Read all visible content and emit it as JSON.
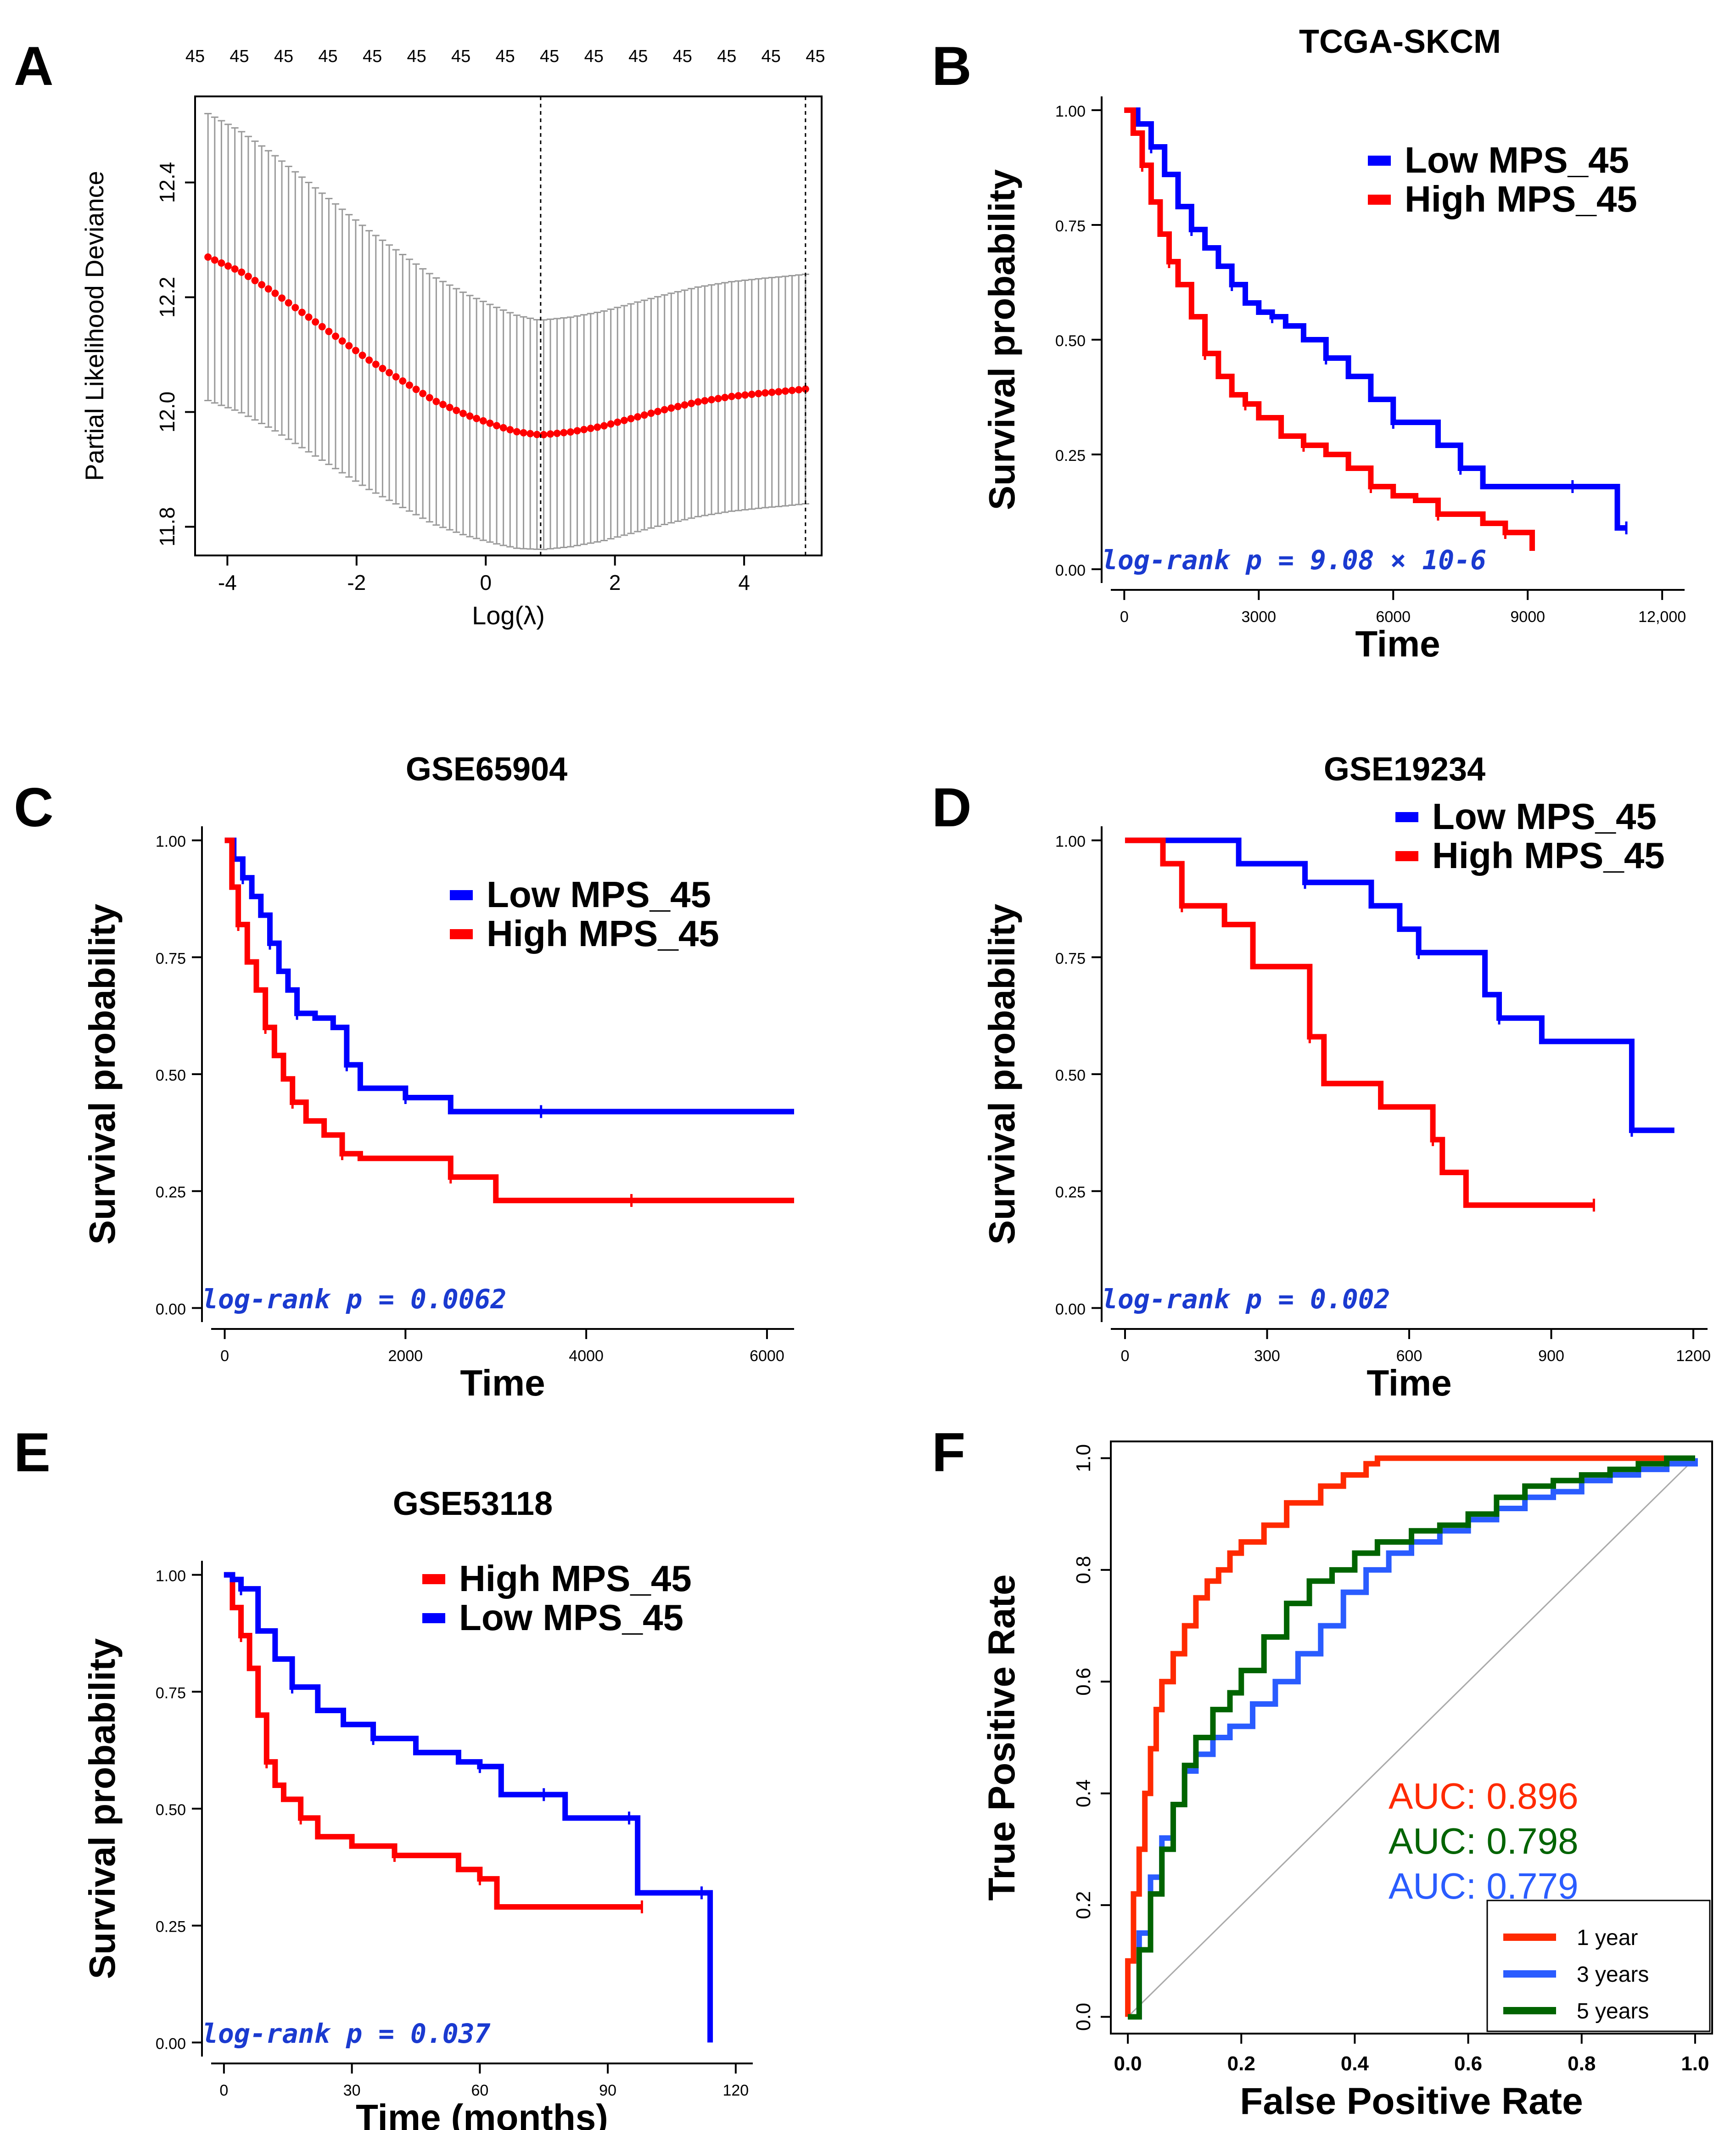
{
  "figure": {
    "chart_data": [
      {
        "panel": "A",
        "type": "line",
        "title": "",
        "xlabel": "Log(λ)",
        "ylabel": "Partial Likelihood Deviance",
        "xlim": [
          -4.5,
          5.2
        ],
        "ylim": [
          11.75,
          12.55
        ],
        "xticks": [
          "-4",
          "-2",
          "0",
          "2",
          "4"
        ],
        "yticks": [
          "11.8",
          "12.0",
          "12.2",
          "12.4"
        ],
        "top_axis_labels": [
          "45",
          "45",
          "45",
          "45",
          "45",
          "45",
          "45",
          "45",
          "45",
          "45",
          "45",
          "45",
          "45",
          "45",
          "45"
        ],
        "vlines": [
          0.85,
          4.95
        ],
        "series": [
          {
            "name": "Partial likelihood deviance",
            "x": [
              -4.3,
              -3.8,
              -3.3,
              -2.8,
              -2.3,
              -1.8,
              -1.3,
              -0.8,
              -0.3,
              0.2,
              0.5,
              0.85,
              1.3,
              1.8,
              2.3,
              2.8,
              3.3,
              3.8,
              4.3,
              4.6,
              4.95
            ],
            "y": [
              12.27,
              12.245,
              12.21,
              12.17,
              12.13,
              12.09,
              12.055,
              12.02,
              11.995,
              11.975,
              11.965,
              11.96,
              11.965,
              11.975,
              11.99,
              12.005,
              12.018,
              12.027,
              12.033,
              12.036,
              12.04
            ]
          }
        ],
        "error_band": {
          "upper_start": 12.52,
          "lower_start": 12.02,
          "upper_min": 12.15,
          "lower_min": 11.75,
          "upper_end": 12.24,
          "lower_end": 11.84
        }
      },
      {
        "panel": "B",
        "type": "line",
        "title": "TCGA-SKCM",
        "xlabel": "Time",
        "ylabel": "Survival probability",
        "xlim": [
          -300,
          12500
        ],
        "ylim": [
          -0.03,
          1.03
        ],
        "xticks": [
          "0",
          "3000",
          "6000",
          "9000",
          "12,000"
        ],
        "yticks": [
          "0.00",
          "0.25",
          "0.50",
          "0.75",
          "1.00"
        ],
        "legend": [
          "Low MPS_45",
          "High MPS_45"
        ],
        "annotation": "log-rank p = 9.08 × 10-6",
        "series": [
          {
            "name": "Low MPS_45",
            "x": [
              0,
              300,
              600,
              900,
              1200,
              1500,
              1800,
              2100,
              2400,
              2700,
              3000,
              3300,
              3600,
              4000,
              4500,
              5000,
              5500,
              6000,
              6500,
              7000,
              7500,
              8000,
              9000,
              10000,
              10500,
              11000,
              11200
            ],
            "y": [
              1.0,
              0.97,
              0.92,
              0.86,
              0.79,
              0.74,
              0.7,
              0.66,
              0.62,
              0.58,
              0.56,
              0.55,
              0.53,
              0.5,
              0.46,
              0.42,
              0.37,
              0.32,
              0.32,
              0.27,
              0.22,
              0.18,
              0.18,
              0.18,
              0.18,
              0.09,
              0.09
            ]
          },
          {
            "name": "High MPS_45",
            "x": [
              0,
              200,
              400,
              600,
              800,
              1000,
              1200,
              1500,
              1800,
              2100,
              2400,
              2700,
              3000,
              3500,
              4000,
              4500,
              5000,
              5500,
              6000,
              6500,
              7000,
              7500,
              8000,
              8500,
              9000,
              9100
            ],
            "y": [
              1.0,
              0.95,
              0.88,
              0.8,
              0.73,
              0.67,
              0.62,
              0.55,
              0.47,
              0.42,
              0.38,
              0.36,
              0.33,
              0.29,
              0.27,
              0.25,
              0.22,
              0.18,
              0.16,
              0.15,
              0.12,
              0.12,
              0.1,
              0.08,
              0.08,
              0.04
            ]
          }
        ]
      },
      {
        "panel": "C",
        "type": "line",
        "title": "GSE65904",
        "xlabel": "Time",
        "ylabel": "Survival probability",
        "xlim": [
          -150,
          6300
        ],
        "ylim": [
          -0.03,
          1.03
        ],
        "xticks": [
          "0",
          "2000",
          "4000",
          "6000"
        ],
        "yticks": [
          "0.00",
          "0.25",
          "0.50",
          "0.75",
          "1.00"
        ],
        "legend": [
          "Low MPS_45",
          "High MPS_45"
        ],
        "annotation": "log-rank p = 0.0062",
        "series": [
          {
            "name": "Low MPS_45",
            "x": [
              0,
              100,
              200,
              300,
              400,
              500,
              600,
              700,
              800,
              1000,
              1200,
              1350,
              1500,
              1700,
              2000,
              2500,
              3000,
              3500,
              4000,
              6300
            ],
            "y": [
              1.0,
              0.96,
              0.92,
              0.88,
              0.84,
              0.78,
              0.72,
              0.68,
              0.63,
              0.62,
              0.6,
              0.52,
              0.47,
              0.47,
              0.45,
              0.42,
              0.42,
              0.42,
              0.42,
              0.42
            ]
          },
          {
            "name": "High MPS_45",
            "x": [
              0,
              80,
              150,
              250,
              350,
              450,
              550,
              650,
              750,
              900,
              1100,
              1300,
              1500,
              2000,
              2500,
              3000,
              3500,
              4500,
              6300
            ],
            "y": [
              1.0,
              0.9,
              0.82,
              0.74,
              0.68,
              0.6,
              0.54,
              0.49,
              0.44,
              0.4,
              0.37,
              0.33,
              0.32,
              0.32,
              0.28,
              0.23,
              0.23,
              0.23,
              0.23
            ]
          }
        ]
      },
      {
        "panel": "D",
        "type": "line",
        "title": "GSE19234",
        "xlabel": "Time",
        "ylabel": "Survival probability",
        "xlim": [
          -30,
          1230
        ],
        "ylim": [
          -0.03,
          1.03
        ],
        "xticks": [
          "0",
          "300",
          "600",
          "900",
          "1200"
        ],
        "yticks": [
          "0.00",
          "0.25",
          "0.50",
          "0.75",
          "1.00"
        ],
        "legend": [
          "Low MPS_45",
          "High MPS_45"
        ],
        "annotation": "log-rank p = 0.002",
        "series": [
          {
            "name": "Low MPS_45",
            "x": [
              0,
              240,
              380,
              520,
              580,
              620,
              680,
              760,
              790,
              840,
              880,
              1070,
              1160
            ],
            "y": [
              1.0,
              0.95,
              0.91,
              0.86,
              0.81,
              0.76,
              0.76,
              0.67,
              0.62,
              0.62,
              0.57,
              0.38,
              0.38
            ]
          },
          {
            "name": "High MPS_45",
            "x": [
              0,
              80,
              120,
              210,
              270,
              390,
              420,
              540,
              650,
              670,
              720,
              990
            ],
            "y": [
              1.0,
              0.95,
              0.86,
              0.82,
              0.73,
              0.58,
              0.48,
              0.43,
              0.36,
              0.29,
              0.22,
              0.22
            ]
          }
        ]
      },
      {
        "panel": "E",
        "type": "line",
        "title": "GSE53118",
        "xlabel": "Time (months)",
        "ylabel": "Survival probability",
        "xlim": [
          -3,
          124
        ],
        "ylim": [
          -0.03,
          1.03
        ],
        "xticks": [
          "0",
          "30",
          "60",
          "90",
          "120"
        ],
        "yticks": [
          "0.00",
          "0.25",
          "0.50",
          "0.75",
          "1.00"
        ],
        "legend": [
          "High MPS_45",
          "Low MPS_45"
        ],
        "annotation": "log-rank p = 0.037",
        "series": [
          {
            "name": "High MPS_45",
            "x": [
              0,
              2,
              4,
              6,
              8,
              10,
              12,
              14,
              18,
              22,
              30,
              40,
              50,
              55,
              60,
              64,
              70,
              98
            ],
            "y": [
              1.0,
              0.93,
              0.87,
              0.8,
              0.7,
              0.6,
              0.55,
              0.52,
              0.48,
              0.44,
              0.42,
              0.4,
              0.4,
              0.37,
              0.35,
              0.29,
              0.29,
              0.29
            ]
          },
          {
            "name": "Low MPS_45",
            "x": [
              0,
              2,
              4,
              8,
              12,
              16,
              22,
              28,
              35,
              45,
              55,
              60,
              62,
              65,
              75,
              80,
              88,
              95,
              97,
              100,
              112,
              114
            ],
            "y": [
              1.0,
              0.99,
              0.97,
              0.88,
              0.82,
              0.76,
              0.71,
              0.68,
              0.65,
              0.62,
              0.6,
              0.59,
              0.59,
              0.53,
              0.53,
              0.48,
              0.48,
              0.48,
              0.32,
              0.32,
              0.32,
              0.0
            ]
          }
        ]
      },
      {
        "panel": "F",
        "type": "line",
        "title": "",
        "xlabel": "False Positive Rate",
        "ylabel": "True Positive Rate",
        "xlim": [
          -0.03,
          1.03
        ],
        "ylim": [
          -0.03,
          1.03
        ],
        "xticks": [
          "0.0",
          "0.2",
          "0.4",
          "0.6",
          "0.8",
          "1.0"
        ],
        "yticks": [
          "0.0",
          "0.2",
          "0.4",
          "0.6",
          "0.8",
          "1.0"
        ],
        "legend": [
          "1 year",
          "3 years",
          "5 years"
        ],
        "auc_labels": [
          "AUC: 0.896",
          "AUC: 0.798",
          "AUC: 0.779"
        ],
        "series": [
          {
            "name": "1 year",
            "x": [
              0.0,
              0.0,
              0.01,
              0.02,
              0.03,
              0.04,
              0.05,
              0.06,
              0.08,
              0.1,
              0.12,
              0.14,
              0.16,
              0.18,
              0.2,
              0.24,
              0.28,
              0.34,
              0.38,
              0.42,
              0.44,
              0.5,
              1.0
            ],
            "y": [
              0.0,
              0.1,
              0.22,
              0.3,
              0.4,
              0.48,
              0.55,
              0.6,
              0.65,
              0.7,
              0.75,
              0.78,
              0.8,
              0.83,
              0.85,
              0.88,
              0.92,
              0.95,
              0.97,
              0.99,
              1.0,
              1.0,
              1.0
            ]
          },
          {
            "name": "3 years",
            "x": [
              0.0,
              0.02,
              0.04,
              0.06,
              0.08,
              0.1,
              0.12,
              0.15,
              0.18,
              0.22,
              0.26,
              0.3,
              0.34,
              0.38,
              0.42,
              0.46,
              0.5,
              0.55,
              0.6,
              0.65,
              0.7,
              0.75,
              0.8,
              0.85,
              0.9,
              0.95,
              1.0
            ],
            "y": [
              0.0,
              0.15,
              0.25,
              0.32,
              0.38,
              0.44,
              0.47,
              0.5,
              0.52,
              0.56,
              0.6,
              0.65,
              0.7,
              0.76,
              0.8,
              0.83,
              0.85,
              0.87,
              0.89,
              0.91,
              0.93,
              0.94,
              0.96,
              0.97,
              0.98,
              0.99,
              1.0
            ]
          },
          {
            "name": "5 years",
            "x": [
              0.0,
              0.02,
              0.04,
              0.06,
              0.08,
              0.1,
              0.12,
              0.15,
              0.18,
              0.2,
              0.24,
              0.28,
              0.32,
              0.36,
              0.4,
              0.44,
              0.5,
              0.55,
              0.6,
              0.65,
              0.7,
              0.75,
              0.8,
              0.85,
              0.9,
              0.95,
              1.0
            ],
            "y": [
              0.0,
              0.12,
              0.22,
              0.3,
              0.38,
              0.45,
              0.5,
              0.55,
              0.58,
              0.62,
              0.68,
              0.74,
              0.78,
              0.8,
              0.83,
              0.85,
              0.87,
              0.88,
              0.9,
              0.93,
              0.95,
              0.96,
              0.97,
              0.98,
              0.99,
              1.0,
              1.0
            ]
          }
        ]
      }
    ]
  },
  "panel_letters": [
    "A",
    "B",
    "C",
    "D",
    "E",
    "F"
  ],
  "colors": {
    "red": "#ff0000",
    "blue": "#0000ff",
    "green": "#006400",
    "roc_red": "#ff2a00",
    "roc_blue": "#2a5cff",
    "grey": "#9a9a9a",
    "annotation_blue": "#1a3ad0"
  }
}
